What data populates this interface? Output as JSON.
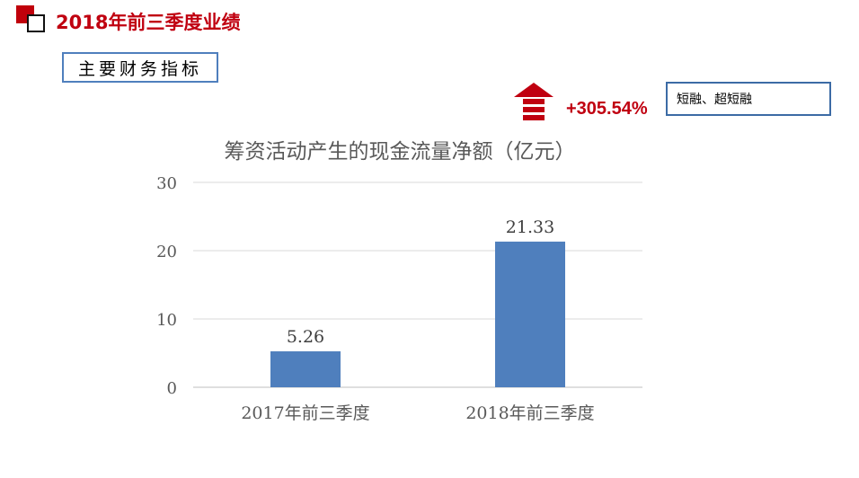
{
  "header": {
    "title": "2018年前三季度业绩"
  },
  "section": {
    "label": "主要财务指标"
  },
  "growth": {
    "icon": "up-arrow-icon",
    "value": "+305.54%",
    "color": "#c00010"
  },
  "note": {
    "text": "短融、超短融"
  },
  "chart_data": {
    "type": "bar",
    "title": "筹资活动产生的现金流量净额（亿元）",
    "categories": [
      "2017年前三季度",
      "2018年前三季度"
    ],
    "values": [
      5.26,
      21.33
    ],
    "data_labels": [
      "5.26",
      "21.33"
    ],
    "yticks": [
      "0",
      "10",
      "20",
      "30"
    ],
    "ylim": [
      0,
      30
    ],
    "xlabel": "",
    "ylabel": "",
    "grid": true,
    "bar_color": "#4f7fbd"
  }
}
